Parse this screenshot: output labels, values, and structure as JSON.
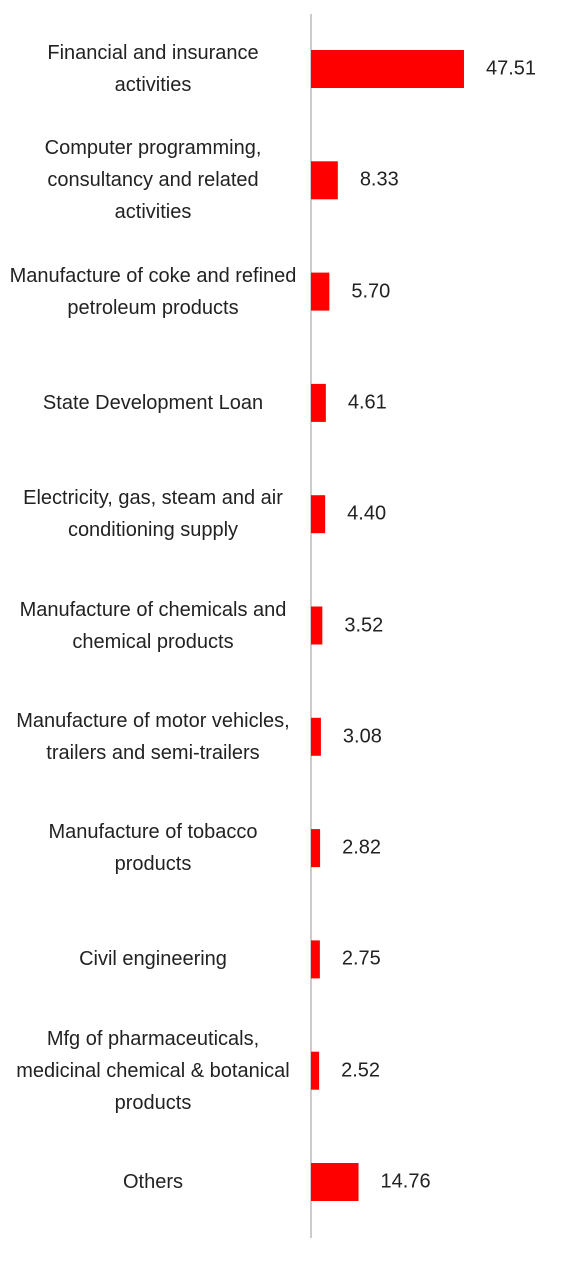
{
  "chart_data": {
    "type": "bar",
    "orientation": "horizontal",
    "color": "#ff0000",
    "categories": [
      "Financial and insurance activities",
      "Computer programming, consultancy and related activities",
      "Manufacture of coke and refined petroleum products",
      "State Development Loan",
      "Electricity, gas, steam and air conditioning supply",
      "Manufacture of chemicals and chemical products",
      "Manufacture of motor vehicles, trailers and semi-trailers",
      "Manufacture of tobacco products",
      "Civil engineering",
      "Mfg of pharmaceuticals, medicinal chemical & botanical products",
      "Others"
    ],
    "values": [
      47.51,
      8.33,
      5.7,
      4.61,
      4.4,
      3.52,
      3.08,
      2.82,
      2.75,
      2.52,
      14.76
    ],
    "value_labels": [
      "47.51",
      "8.33",
      "5.70",
      "4.61",
      "4.40",
      "3.52",
      "3.08",
      "2.82",
      "2.75",
      "2.52",
      "14.76"
    ]
  }
}
